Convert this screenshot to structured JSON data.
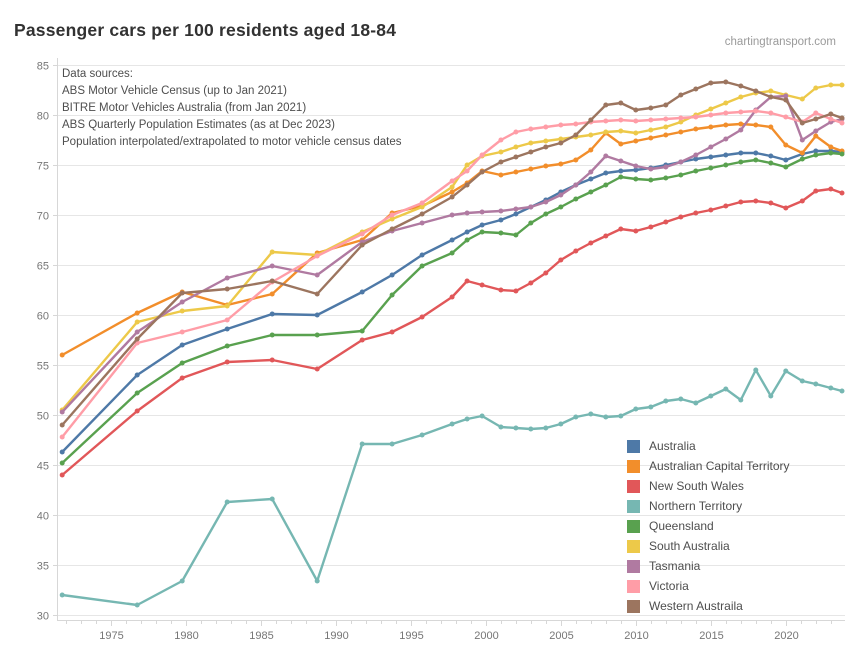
{
  "header": {
    "title": "Passenger cars per 100 residents aged 18-84",
    "watermark": "chartingtransport.com"
  },
  "annotation": {
    "lines": [
      "Data sources:",
      "ABS Motor Vehicle Census (up to Jan 2021)",
      "BITRE Motor Vehicles Australia (from Jan 2021)",
      "ABS Quarterly Population Estimates (as at Dec 2023)",
      "Population interpolated/extrapolated to motor vehicle census dates"
    ]
  },
  "chart_data": {
    "type": "line",
    "title": "Passenger cars per 100 residents aged 18-84",
    "xlabel": "",
    "ylabel": "",
    "grid": "horizontal",
    "legend_position": "inside-bottom-right",
    "xlim": [
      1971.4,
      2023.95
    ],
    "ylim": [
      29.5,
      85.7
    ],
    "yticks": [
      30,
      35,
      40,
      45,
      50,
      55,
      60,
      65,
      70,
      75,
      80,
      85
    ],
    "xticks": [
      1975,
      1980,
      1985,
      1990,
      1995,
      2000,
      2005,
      2010,
      2015,
      2020
    ],
    "x": [
      1971.75,
      1976.75,
      1979.75,
      1982.75,
      1985.75,
      1988.75,
      1991.75,
      1993.75,
      1995.75,
      1997.75,
      1998.75,
      1999.75,
      2001,
      2002,
      2003,
      2004,
      2005,
      2006,
      2007,
      2008,
      2009,
      2010,
      2011,
      2012,
      2013,
      2014,
      2015,
      2016,
      2017,
      2018,
      2019,
      2020,
      2021.1,
      2022,
      2023,
      2023.75
    ],
    "series": [
      {
        "name": "Australia",
        "color": "#4e79a7",
        "values": [
          46.3,
          54.0,
          57.0,
          58.6,
          60.1,
          60.0,
          62.3,
          64.0,
          66.0,
          67.5,
          68.3,
          69.0,
          69.5,
          70.1,
          70.8,
          71.5,
          72.3,
          73.0,
          73.6,
          74.2,
          74.4,
          74.5,
          74.7,
          75.0,
          75.3,
          75.6,
          75.8,
          76.0,
          76.2,
          76.2,
          75.9,
          75.5,
          76.1,
          76.4,
          76.4,
          76.3
        ]
      },
      {
        "name": "Australian Capital Territory",
        "color": "#f28e2b",
        "values": [
          56.0,
          60.2,
          62.3,
          61.0,
          62.1,
          66.2,
          67.5,
          70.2,
          70.9,
          72.3,
          73.2,
          74.4,
          74.0,
          74.3,
          74.6,
          74.9,
          75.1,
          75.5,
          76.5,
          78.2,
          77.1,
          77.4,
          77.7,
          78.0,
          78.3,
          78.6,
          78.8,
          79.0,
          79.1,
          79.0,
          78.8,
          77.0,
          76.2,
          77.9,
          76.8,
          76.4
        ]
      },
      {
        "name": "New South Wales",
        "color": "#e15759",
        "values": [
          44.0,
          50.4,
          53.7,
          55.3,
          55.5,
          54.6,
          57.5,
          58.3,
          59.8,
          61.8,
          63.4,
          63.0,
          62.5,
          62.4,
          63.2,
          64.2,
          65.5,
          66.4,
          67.2,
          67.9,
          68.6,
          68.4,
          68.8,
          69.3,
          69.8,
          70.2,
          70.5,
          70.9,
          71.3,
          71.4,
          71.2,
          70.7,
          71.4,
          72.4,
          72.6,
          72.2
        ]
      },
      {
        "name": "Northern Territory",
        "color": "#76b7b2",
        "values": [
          32.0,
          31.0,
          33.4,
          41.3,
          41.6,
          33.4,
          47.1,
          47.1,
          48.0,
          49.1,
          49.6,
          49.9,
          48.8,
          48.7,
          48.6,
          48.7,
          49.1,
          49.8,
          50.1,
          49.8,
          49.9,
          50.6,
          50.8,
          51.4,
          51.6,
          51.2,
          51.9,
          52.6,
          51.5,
          54.5,
          51.9,
          54.4,
          53.4,
          53.1,
          52.7,
          52.4
        ]
      },
      {
        "name": "Queensland",
        "color": "#59a14f",
        "values": [
          45.2,
          52.2,
          55.2,
          56.9,
          58.0,
          58.0,
          58.4,
          62.0,
          64.9,
          66.2,
          67.5,
          68.3,
          68.2,
          68.0,
          69.2,
          70.1,
          70.8,
          71.6,
          72.3,
          73.0,
          73.8,
          73.6,
          73.5,
          73.7,
          74.0,
          74.4,
          74.7,
          75.0,
          75.3,
          75.5,
          75.2,
          74.8,
          75.6,
          76.0,
          76.2,
          76.1
        ]
      },
      {
        "name": "South Australia",
        "color": "#edc949",
        "values": [
          50.5,
          59.3,
          60.4,
          60.9,
          66.3,
          66.0,
          68.3,
          69.6,
          70.8,
          72.8,
          75.0,
          75.9,
          76.3,
          76.8,
          77.2,
          77.4,
          77.6,
          77.8,
          78.0,
          78.3,
          78.4,
          78.2,
          78.5,
          78.8,
          79.3,
          80.0,
          80.6,
          81.2,
          81.8,
          82.2,
          82.4,
          82.0,
          81.6,
          82.7,
          83.0,
          83.0
        ]
      },
      {
        "name": "Tasmania",
        "color": "#b07aa1",
        "values": [
          50.3,
          58.3,
          61.3,
          63.7,
          64.9,
          64.0,
          67.3,
          68.4,
          69.2,
          70.0,
          70.2,
          70.3,
          70.4,
          70.6,
          70.8,
          71.3,
          72.0,
          73.0,
          74.3,
          75.9,
          75.4,
          74.9,
          74.6,
          74.8,
          75.3,
          76.0,
          76.8,
          77.6,
          78.5,
          80.5,
          81.8,
          81.9,
          77.5,
          78.4,
          79.3,
          79.6
        ]
      },
      {
        "name": "Victoria",
        "color": "#ff9da7",
        "values": [
          47.8,
          57.2,
          58.3,
          59.5,
          63.3,
          65.9,
          68.1,
          70.0,
          71.2,
          73.4,
          74.4,
          76.0,
          77.5,
          78.3,
          78.6,
          78.8,
          79.0,
          79.1,
          79.3,
          79.4,
          79.5,
          79.4,
          79.5,
          79.6,
          79.7,
          79.8,
          80.0,
          80.2,
          80.3,
          80.4,
          80.2,
          79.8,
          79.3,
          80.2,
          79.6,
          79.2
        ]
      },
      {
        "name": "Western Austraila",
        "color": "#9c755f",
        "values": [
          49.0,
          57.6,
          62.2,
          62.6,
          63.4,
          62.1,
          67.0,
          68.6,
          70.1,
          71.8,
          73.0,
          74.3,
          75.3,
          75.8,
          76.3,
          76.8,
          77.2,
          78.0,
          79.5,
          81.0,
          81.2,
          80.5,
          80.7,
          81.0,
          82.0,
          82.6,
          83.2,
          83.3,
          82.9,
          82.4,
          81.8,
          81.5,
          79.2,
          79.6,
          80.1,
          79.7
        ]
      }
    ],
    "colors": {
      "grid": "#e6e6e6",
      "axis": "#d7d7d7",
      "tick_label": "#767676"
    }
  }
}
